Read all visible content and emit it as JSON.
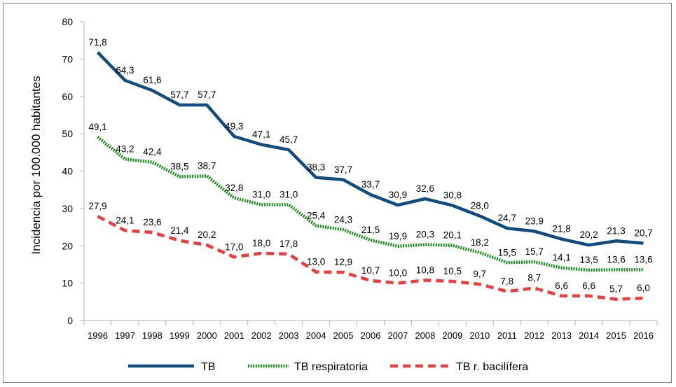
{
  "chart_data": {
    "type": "line",
    "ylabel": "Incidencia por 100.000 habitantes",
    "xlabel": "",
    "ylim": [
      0,
      80
    ],
    "yticks": [
      0,
      10,
      20,
      30,
      40,
      50,
      60,
      70,
      80
    ],
    "categories": [
      "1996",
      "1997",
      "1998",
      "1999",
      "2000",
      "2001",
      "2002",
      "2003",
      "2004",
      "2005",
      "2006",
      "2007",
      "2008",
      "2009",
      "2010",
      "2011",
      "2012",
      "2013",
      "2014",
      "2015",
      "2016"
    ],
    "grid": false,
    "legend_position": "bottom",
    "series": [
      {
        "name": "TB",
        "style": "solid",
        "color": "#0f4c81",
        "values": [
          71.8,
          64.3,
          61.6,
          57.7,
          57.7,
          49.3,
          47.1,
          45.7,
          38.3,
          37.7,
          33.7,
          30.9,
          32.6,
          30.8,
          28.0,
          24.7,
          23.9,
          21.8,
          20.2,
          21.3,
          20.7
        ],
        "labels": [
          "71,8",
          "64,3",
          "61,6",
          "57,7",
          "57,7",
          "49,3",
          "47,1",
          "45,7",
          "38,3",
          "37,7",
          "33,7",
          "30,9",
          "32,6",
          "30,8",
          "28,0",
          "24,7",
          "23,9",
          "21,8",
          "20,2",
          "21,3",
          "20,7"
        ]
      },
      {
        "name": "TB respiratoria",
        "style": "dotted",
        "color": "#109010",
        "values": [
          49.1,
          43.2,
          42.4,
          38.5,
          38.7,
          32.8,
          31.0,
          31.0,
          25.4,
          24.3,
          21.5,
          19.9,
          20.3,
          20.1,
          18.2,
          15.5,
          15.7,
          14.1,
          13.5,
          13.6,
          13.6
        ],
        "labels": [
          "49,1",
          "43,2",
          "42,4",
          "38,5",
          "38,7",
          "32,8",
          "31,0",
          "31,0",
          "25,4",
          "24,3",
          "21,5",
          "19,9",
          "20,3",
          "20,1",
          "18,2",
          "15,5",
          "15,7",
          "14,1",
          "13,5",
          "13,6",
          "13,6"
        ]
      },
      {
        "name": "TB r. bacilífera",
        "style": "dashed",
        "color": "#ef3b3b",
        "values": [
          27.9,
          24.1,
          23.6,
          21.4,
          20.2,
          17.0,
          18.0,
          17.8,
          13.0,
          12.9,
          10.7,
          10.0,
          10.8,
          10.5,
          9.7,
          7.8,
          8.7,
          6.6,
          6.6,
          5.7,
          6.0
        ],
        "labels": [
          "27,9",
          "24,1",
          "23,6",
          "21,4",
          "20,2",
          "17,0",
          "18,0",
          "17,8",
          "13,0",
          "12,9",
          "10,7",
          "10,0",
          "10,8",
          "10,5",
          "9,7",
          "7,8",
          "8,7",
          "6,6",
          "6,6",
          "5,7",
          "6,0"
        ]
      }
    ]
  }
}
